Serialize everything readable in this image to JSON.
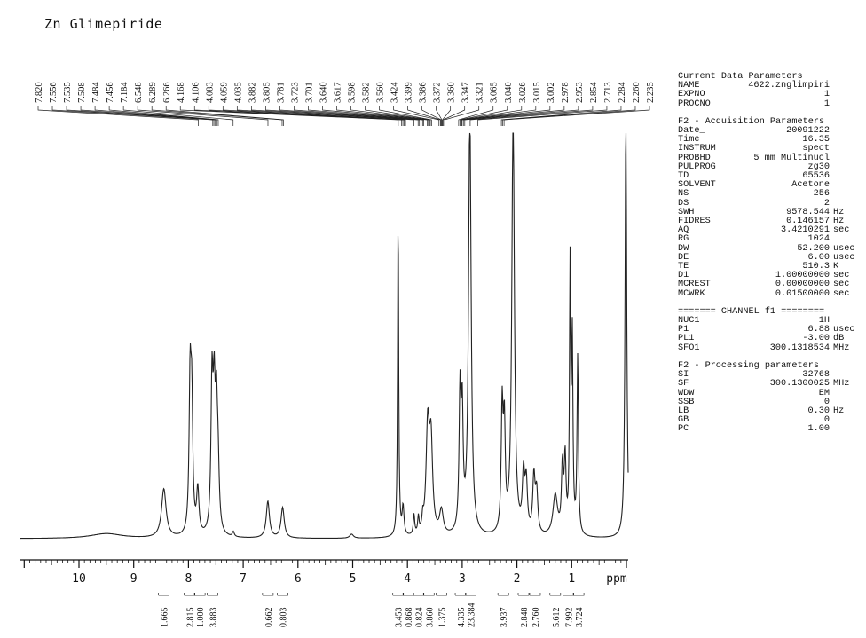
{
  "title": "Zn Glimepiride",
  "chart_data": {
    "type": "line",
    "title": "Zn Glimepiride",
    "xlabel": "ppm",
    "ylabel": "",
    "xlim": [
      11,
      -0.6
    ],
    "x_reversed": true,
    "xticks": [
      "10",
      "9",
      "8",
      "7",
      "6",
      "5",
      "4",
      "3",
      "2",
      "1",
      "ppm"
    ],
    "peak_labels": [
      "7.820",
      "7.556",
      "7.535",
      "7.508",
      "7.484",
      "7.456",
      "7.184",
      "6.548",
      "6.289",
      "6.266",
      "4.168",
      "4.106",
      "4.083",
      "4.059",
      "4.035",
      "3.882",
      "3.805",
      "3.781",
      "3.723",
      "3.701",
      "3.640",
      "3.617",
      "3.598",
      "3.582",
      "3.560",
      "3.424",
      "3.399",
      "3.386",
      "3.372",
      "3.360",
      "3.347",
      "3.321",
      "3.065",
      "3.040",
      "3.026",
      "3.015",
      "3.002",
      "2.978",
      "2.953",
      "2.854",
      "2.713",
      "2.284",
      "2.260",
      "2.235"
    ],
    "peaks": [
      {
        "ppm": 9.5,
        "h": 0.012,
        "w": 0.35
      },
      {
        "ppm": 8.45,
        "h": 0.12,
        "w": 0.05
      },
      {
        "ppm": 7.97,
        "h": 0.36,
        "w": 0.022
      },
      {
        "ppm": 7.94,
        "h": 0.3,
        "w": 0.022
      },
      {
        "ppm": 7.83,
        "h": 0.11,
        "w": 0.025
      },
      {
        "ppm": 7.57,
        "h": 0.36,
        "w": 0.022
      },
      {
        "ppm": 7.53,
        "h": 0.3,
        "w": 0.022
      },
      {
        "ppm": 7.49,
        "h": 0.26,
        "w": 0.022
      },
      {
        "ppm": 7.46,
        "h": 0.15,
        "w": 0.025
      },
      {
        "ppm": 7.18,
        "h": 0.012,
        "w": 0.02
      },
      {
        "ppm": 6.55,
        "h": 0.09,
        "w": 0.035
      },
      {
        "ppm": 6.28,
        "h": 0.075,
        "w": 0.035
      },
      {
        "ppm": 5.02,
        "h": 0.01,
        "w": 0.04
      },
      {
        "ppm": 4.17,
        "h": 0.8,
        "w": 0.012
      },
      {
        "ppm": 4.08,
        "h": 0.07,
        "w": 0.02
      },
      {
        "ppm": 3.88,
        "h": 0.05,
        "w": 0.015
      },
      {
        "ppm": 3.8,
        "h": 0.04,
        "w": 0.015
      },
      {
        "ppm": 3.72,
        "h": 0.03,
        "w": 0.015
      },
      {
        "ppm": 3.63,
        "h": 0.26,
        "w": 0.035
      },
      {
        "ppm": 3.57,
        "h": 0.22,
        "w": 0.035
      },
      {
        "ppm": 3.38,
        "h": 0.06,
        "w": 0.04
      },
      {
        "ppm": 3.04,
        "h": 0.33,
        "w": 0.02
      },
      {
        "ppm": 3.0,
        "h": 0.28,
        "w": 0.02
      },
      {
        "ppm": 2.86,
        "h": 1.05,
        "w": 0.028
      },
      {
        "ppm": 2.27,
        "h": 0.3,
        "w": 0.02
      },
      {
        "ppm": 2.23,
        "h": 0.25,
        "w": 0.02
      },
      {
        "ppm": 2.07,
        "h": 1.05,
        "w": 0.028
      },
      {
        "ppm": 1.88,
        "h": 0.14,
        "w": 0.025
      },
      {
        "ppm": 1.83,
        "h": 0.12,
        "w": 0.025
      },
      {
        "ppm": 1.69,
        "h": 0.14,
        "w": 0.025
      },
      {
        "ppm": 1.64,
        "h": 0.1,
        "w": 0.025
      },
      {
        "ppm": 1.3,
        "h": 0.1,
        "w": 0.05
      },
      {
        "ppm": 1.17,
        "h": 0.16,
        "w": 0.02
      },
      {
        "ppm": 1.12,
        "h": 0.18,
        "w": 0.02
      },
      {
        "ppm": 1.03,
        "h": 0.64,
        "w": 0.012
      },
      {
        "ppm": 0.99,
        "h": 0.48,
        "w": 0.015
      },
      {
        "ppm": 0.89,
        "h": 0.44,
        "w": 0.015
      },
      {
        "ppm": 0.01,
        "h": 1.06,
        "w": 0.018
      }
    ],
    "integrals": [
      {
        "center": 8.45,
        "value": "1.665"
      },
      {
        "center": 7.98,
        "value": "2.815"
      },
      {
        "center": 7.82,
        "value": "1.000"
      },
      {
        "center": 7.56,
        "value": "3.883"
      },
      {
        "center": 6.55,
        "value": "0.662"
      },
      {
        "center": 6.28,
        "value": "0.803"
      },
      {
        "center": 4.17,
        "value": "3.453"
      },
      {
        "center": 4.07,
        "value": "0.868"
      },
      {
        "center": 3.82,
        "value": "0.824"
      },
      {
        "center": 3.61,
        "value": "3.860"
      },
      {
        "center": 3.38,
        "value": "1.375"
      },
      {
        "center": 3.03,
        "value": "4.335"
      },
      {
        "center": 2.86,
        "value": "23.384"
      },
      {
        "center": 2.25,
        "value": "3.937"
      },
      {
        "center": 1.88,
        "value": "2.848"
      },
      {
        "center": 1.67,
        "value": "2.760"
      },
      {
        "center": 1.3,
        "value": "5.612"
      },
      {
        "center": 1.06,
        "value": "7.992"
      },
      {
        "center": 0.89,
        "value": "3.724"
      }
    ]
  },
  "params": {
    "current": {
      "heading": "Current Data Parameters",
      "rows": [
        {
          "k": "NAME",
          "v": "4622.znglimpiri",
          "u": ""
        },
        {
          "k": "EXPNO",
          "v": "1",
          "u": ""
        },
        {
          "k": "PROCNO",
          "v": "1",
          "u": ""
        }
      ]
    },
    "acquisition": {
      "heading": "F2 - Acquisition Parameters",
      "rows": [
        {
          "k": "Date_",
          "v": "20091222",
          "u": ""
        },
        {
          "k": "Time",
          "v": "16.35",
          "u": ""
        },
        {
          "k": "INSTRUM",
          "v": "spect",
          "u": ""
        },
        {
          "k": "PROBHD",
          "v": "5 mm Multinucl",
          "u": ""
        },
        {
          "k": "PULPROG",
          "v": "zg30",
          "u": ""
        },
        {
          "k": "TD",
          "v": "65536",
          "u": ""
        },
        {
          "k": "SOLVENT",
          "v": "Acetone",
          "u": ""
        },
        {
          "k": "NS",
          "v": "256",
          "u": ""
        },
        {
          "k": "DS",
          "v": "2",
          "u": ""
        },
        {
          "k": "SWH",
          "v": "9578.544",
          "u": "Hz"
        },
        {
          "k": "FIDRES",
          "v": "0.146157",
          "u": "Hz"
        },
        {
          "k": "AQ",
          "v": "3.4210291",
          "u": "sec"
        },
        {
          "k": "RG",
          "v": "1024",
          "u": ""
        },
        {
          "k": "DW",
          "v": "52.200",
          "u": "usec"
        },
        {
          "k": "DE",
          "v": "6.00",
          "u": "usec"
        },
        {
          "k": "TE",
          "v": "510.3",
          "u": "K"
        },
        {
          "k": "D1",
          "v": "1.00000000",
          "u": "sec"
        },
        {
          "k": "MCREST",
          "v": "0.00000000",
          "u": "sec"
        },
        {
          "k": "MCWRK",
          "v": "0.01500000",
          "u": "sec"
        }
      ]
    },
    "channel": {
      "heading": "======= CHANNEL f1 ========",
      "rows": [
        {
          "k": "NUC1",
          "v": "1H",
          "u": ""
        },
        {
          "k": "P1",
          "v": "6.88",
          "u": "usec"
        },
        {
          "k": "PL1",
          "v": "-3.00",
          "u": "dB"
        },
        {
          "k": "SFO1",
          "v": "300.1318534",
          "u": "MHz"
        }
      ]
    },
    "processing": {
      "heading": "F2 - Processing parameters",
      "rows": [
        {
          "k": "SI",
          "v": "32768",
          "u": ""
        },
        {
          "k": "SF",
          "v": "300.1300025",
          "u": "MHz"
        },
        {
          "k": "WDW",
          "v": "EM",
          "u": ""
        },
        {
          "k": "SSB",
          "v": "0",
          "u": ""
        },
        {
          "k": "LB",
          "v": "0.30",
          "u": "Hz"
        },
        {
          "k": "GB",
          "v": "0",
          "u": ""
        },
        {
          "k": "PC",
          "v": "1.00",
          "u": ""
        }
      ]
    }
  }
}
